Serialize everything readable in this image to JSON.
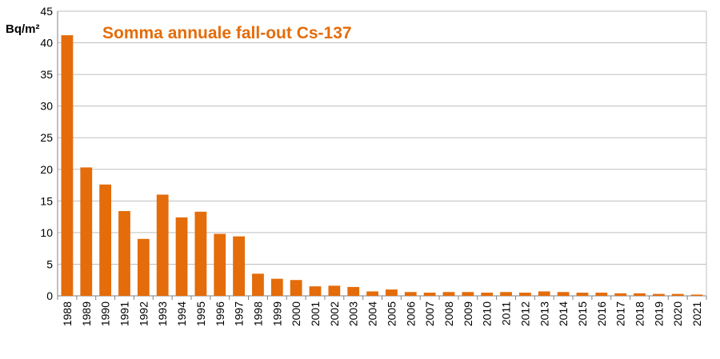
{
  "chart_data": {
    "type": "bar",
    "title": "Somma annuale fall-out Cs-137",
    "ylabel": "Bq/m²",
    "xlabel": "",
    "ylim": [
      0,
      45
    ],
    "yticks": [
      0,
      5,
      10,
      15,
      20,
      25,
      30,
      35,
      40,
      45
    ],
    "grid": true,
    "legend": "none",
    "categories": [
      "1988",
      "1989",
      "1990",
      "1991",
      "1992",
      "1993",
      "1994",
      "1995",
      "1996",
      "1997",
      "1998",
      "1999",
      "2000",
      "2001",
      "2002",
      "2003",
      "2004",
      "2005",
      "2006",
      "2007",
      "2008",
      "2009",
      "2010",
      "2011",
      "2012",
      "2013",
      "2014",
      "2015",
      "2016",
      "2017",
      "2018",
      "2019",
      "2020",
      "2021"
    ],
    "values": [
      41.2,
      20.3,
      17.6,
      13.4,
      9.0,
      16.0,
      12.4,
      13.3,
      9.8,
      9.4,
      3.5,
      2.7,
      2.5,
      1.5,
      1.6,
      1.4,
      0.7,
      1.0,
      0.6,
      0.5,
      0.6,
      0.6,
      0.5,
      0.6,
      0.5,
      0.7,
      0.6,
      0.5,
      0.5,
      0.4,
      0.4,
      0.3,
      0.3,
      0.2
    ],
    "colors": {
      "bar": "#E46C0A",
      "title": "#E46C0A",
      "grid": "#BFBFBF",
      "axis": "#808080"
    }
  }
}
